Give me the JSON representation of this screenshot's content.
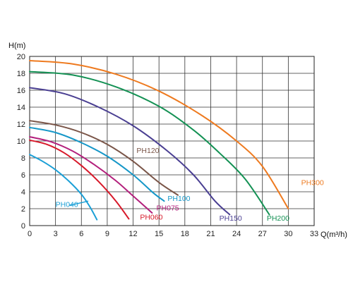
{
  "chart_data": {
    "type": "line",
    "ylabel": "H(m)",
    "xlabel": "Q(m³/h)",
    "xlim": [
      0,
      33
    ],
    "ylim": [
      0,
      20
    ],
    "xticks": [
      "0",
      "3",
      "6",
      "9",
      "12",
      "15",
      "18",
      "21",
      "24",
      "27",
      "30",
      "33"
    ],
    "yticks": [
      "0",
      "2",
      "4",
      "6",
      "8",
      "10",
      "12",
      "14",
      "16",
      "18",
      "20"
    ],
    "grid": true,
    "series": [
      {
        "name": "PH040",
        "color": "#1a9fd6",
        "points": [
          [
            0,
            8.4
          ],
          [
            1.5,
            7.6
          ],
          [
            3,
            6.6
          ],
          [
            4.5,
            5.3
          ],
          [
            6,
            3.7
          ],
          [
            7,
            2.2
          ],
          [
            7.8,
            0.7
          ]
        ]
      },
      {
        "name": "PH060",
        "color": "#d7192a",
        "points": [
          [
            0,
            10.1
          ],
          [
            2,
            9.6
          ],
          [
            4,
            8.6
          ],
          [
            6,
            7.1
          ],
          [
            8,
            5.2
          ],
          [
            10,
            2.9
          ],
          [
            11.5,
            0.8
          ]
        ]
      },
      {
        "name": "PH075",
        "color": "#b3207c",
        "points": [
          [
            0,
            10.5
          ],
          [
            2.5,
            9.9
          ],
          [
            5,
            8.8
          ],
          [
            7.5,
            7.2
          ],
          [
            10,
            5.3
          ],
          [
            12,
            3.5
          ],
          [
            14.2,
            1.5
          ]
        ]
      },
      {
        "name": "PH100",
        "color": "#1697c8",
        "points": [
          [
            0,
            11.6
          ],
          [
            3,
            11
          ],
          [
            6,
            9.8
          ],
          [
            9,
            8.2
          ],
          [
            12,
            6
          ],
          [
            14.3,
            3.9
          ],
          [
            15.6,
            2.9
          ]
        ]
      },
      {
        "name": "PH120",
        "color": "#7a5548",
        "points": [
          [
            0,
            12.4
          ],
          [
            3,
            11.9
          ],
          [
            6,
            11
          ],
          [
            9,
            9.6
          ],
          [
            12,
            7.6
          ],
          [
            15,
            5.1
          ],
          [
            17.2,
            3.6
          ]
        ]
      },
      {
        "name": "PH150",
        "color": "#4a3f92",
        "points": [
          [
            0,
            16.3
          ],
          [
            4,
            15.6
          ],
          [
            8,
            14
          ],
          [
            12,
            11.8
          ],
          [
            16,
            8.8
          ],
          [
            19,
            6
          ],
          [
            21.5,
            2.9
          ],
          [
            23.2,
            1.3
          ]
        ]
      },
      {
        "name": "PH200",
        "color": "#149154",
        "points": [
          [
            0,
            18.2
          ],
          [
            5,
            17.8
          ],
          [
            10,
            16.4
          ],
          [
            15,
            14.1
          ],
          [
            19,
            11.3
          ],
          [
            22,
            8.6
          ],
          [
            25,
            5.5
          ],
          [
            27.8,
            1.3
          ]
        ]
      },
      {
        "name": "PH300",
        "color": "#ee7a1f",
        "points": [
          [
            0,
            19.5
          ],
          [
            5,
            19.1
          ],
          [
            10,
            17.9
          ],
          [
            15,
            15.9
          ],
          [
            20,
            13
          ],
          [
            24,
            10
          ],
          [
            27,
            7
          ],
          [
            30,
            2
          ]
        ]
      }
    ],
    "labels": [
      {
        "text": "PH040",
        "series": "PH040",
        "x": 3.0,
        "y": 2.2
      },
      {
        "text": "PH060",
        "series": "PH060",
        "x": 12.8,
        "y": 0.7
      },
      {
        "text": "PH075",
        "series": "PH075",
        "x": 14.7,
        "y": 1.8
      },
      {
        "text": "PH100",
        "series": "PH100",
        "x": 16.0,
        "y": 2.9
      },
      {
        "text": "PH120",
        "series": "PH120",
        "x": 12.4,
        "y": 8.6
      },
      {
        "text": "PH150",
        "series": "PH150",
        "x": 22.0,
        "y": 0.6
      },
      {
        "text": "PH200",
        "series": "PH200",
        "x": 27.5,
        "y": 0.6
      },
      {
        "text": "PH300",
        "series": "PH300",
        "x": 31.5,
        "y": 4.8
      }
    ]
  }
}
